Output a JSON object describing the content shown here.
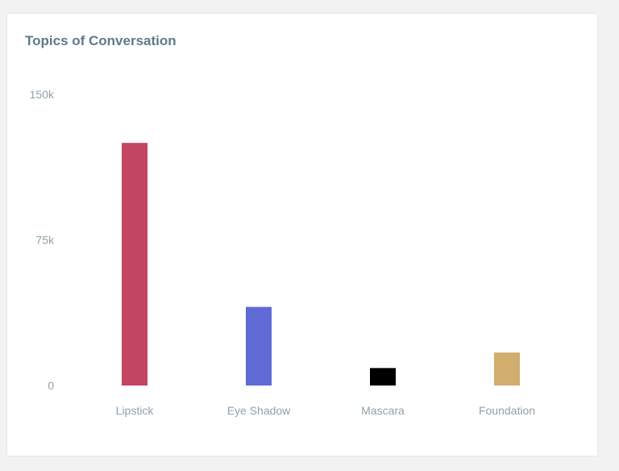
{
  "card": {
    "title": "Topics of Conversation"
  },
  "chart_data": {
    "type": "bar",
    "title": "Topics of Conversation",
    "categories": [
      "Lipstick",
      "Eye Shadow",
      "Mascara",
      "Foundation"
    ],
    "values": [
      125000,
      40500,
      9000,
      17000
    ],
    "colors": [
      "#c24563",
      "#5f6ad5",
      "#000000",
      "#d1ad6e"
    ],
    "ylim": [
      0,
      150000
    ],
    "yticks": [
      {
        "value": 0,
        "label": "0"
      },
      {
        "value": 75000,
        "label": "75k"
      },
      {
        "value": 150000,
        "label": "150k"
      }
    ],
    "xlabel": "",
    "ylabel": "",
    "grid": false,
    "legend": "none"
  }
}
